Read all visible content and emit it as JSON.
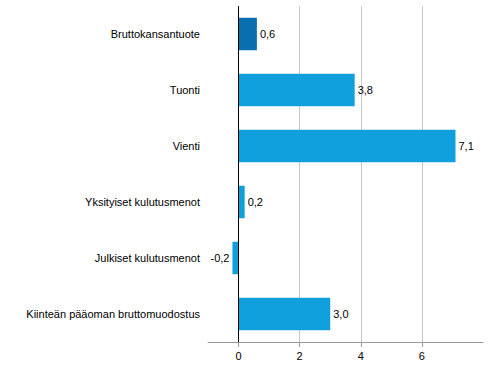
{
  "chart_data": {
    "type": "bar",
    "orientation": "horizontal",
    "categories": [
      "Bruttokansantuote",
      "Tuonti",
      "Vienti",
      "Yksityiset kulutusmenot",
      "Julkiset kulutusmenot",
      "Kiinteän pääoman bruttomuodostus"
    ],
    "values": [
      0.6,
      3.8,
      7.1,
      0.2,
      -0.2,
      3.0
    ],
    "value_labels": [
      "0,6",
      "3,8",
      "7,1",
      "0,2",
      "-0,2",
      "3,0"
    ],
    "colors": [
      "#0a6fae",
      "#109fdd",
      "#109fdd",
      "#109fdd",
      "#109fdd",
      "#109fdd"
    ],
    "xlim": [
      -1,
      8
    ],
    "xticks": [
      0,
      2,
      4,
      6
    ],
    "grid": true,
    "data_labels": true
  }
}
